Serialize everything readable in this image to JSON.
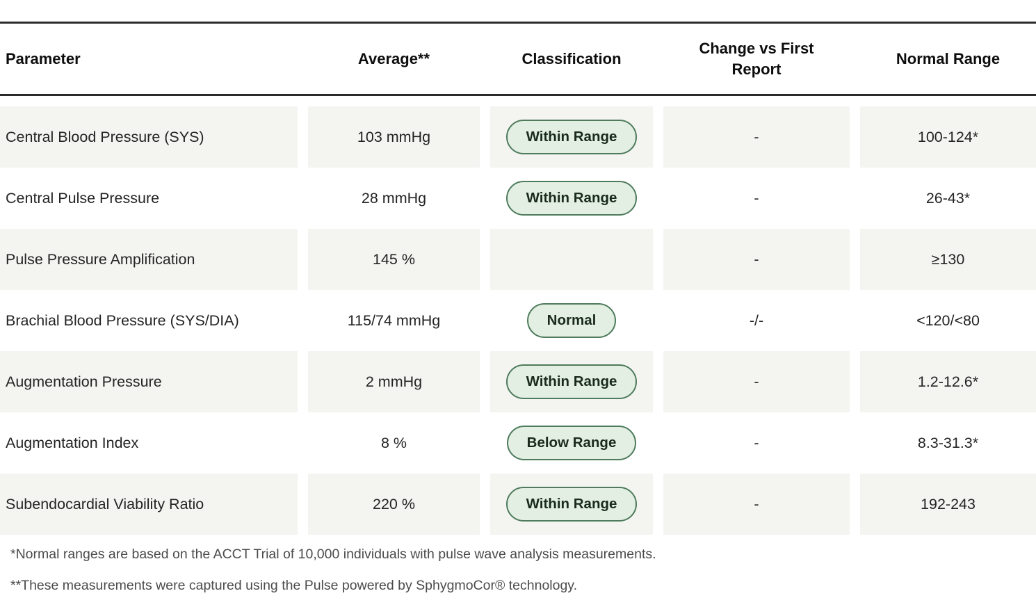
{
  "table": {
    "columns": [
      {
        "key": "parameter",
        "label": "Parameter"
      },
      {
        "key": "average",
        "label": "Average**"
      },
      {
        "key": "classification",
        "label": "Classification"
      },
      {
        "key": "change",
        "label": "Change vs First Report"
      },
      {
        "key": "normal_range",
        "label": "Normal Range"
      }
    ],
    "rows": [
      {
        "parameter": "Central Blood Pressure (SYS)",
        "average": "103 mmHg",
        "classification": "Within Range",
        "change": "-",
        "normal_range": "100-124*"
      },
      {
        "parameter": "Central Pulse Pressure",
        "average": "28 mmHg",
        "classification": "Within Range",
        "change": "-",
        "normal_range": "26-43*"
      },
      {
        "parameter": "Pulse Pressure Amplification",
        "average": "145 %",
        "classification": "",
        "change": "-",
        "normal_range": "≥130"
      },
      {
        "parameter": "Brachial Blood Pressure (SYS/DIA)",
        "average": "115/74 mmHg",
        "classification": "Normal",
        "change": "-/-",
        "normal_range": "<120/<80"
      },
      {
        "parameter": "Augmentation Pressure",
        "average": "2 mmHg",
        "classification": "Within Range",
        "change": "-",
        "normal_range": "1.2-12.6*"
      },
      {
        "parameter": "Augmentation Index",
        "average": "8 %",
        "classification": "Below Range",
        "change": "-",
        "normal_range": "8.3-31.3*"
      },
      {
        "parameter": "Subendocardial Viability Ratio",
        "average": "220 %",
        "classification": "Within Range",
        "change": "-",
        "normal_range": "192-243"
      }
    ]
  },
  "footnotes": [
    "*Normal ranges are based on the ACCT Trial of 10,000 individuals with pulse wave analysis measurements.",
    "**These measurements were captured using the Pulse powered by SphygmoCor® technology."
  ],
  "colors": {
    "row_stripe": "#f4f4f1",
    "badge_bg": "#e3efe3",
    "badge_border": "#4e7b5c",
    "badge_text": "#192a1d",
    "header_rule": "#2b2b2b",
    "footnote_text": "#4b4b4b"
  }
}
